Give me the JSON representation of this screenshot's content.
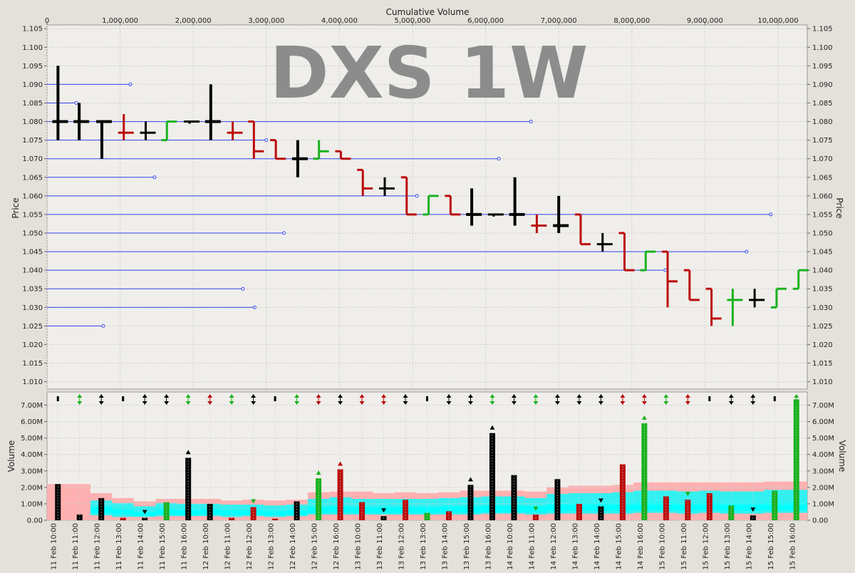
{
  "watermark": "DXS 1W",
  "colors": {
    "up": "#19b21f",
    "down": "#bb0a0a",
    "neutral": "#000000",
    "level_line": "#3344ee",
    "band_outer": "#ffb0b0",
    "band_mid": "#33f0f0",
    "band_inner": "#00ffff",
    "panel_bg": "#f0eeea",
    "grid": "#cfcfcf"
  },
  "chart_data": [
    {
      "type": "ohlc",
      "title": "",
      "xlabel": "Cumulative Volume",
      "ylabel": "Price",
      "xlim": [
        0,
        10400000
      ],
      "ylim": [
        1.008,
        1.106
      ],
      "grid": true,
      "x_ticks": [
        0,
        1000000,
        2000000,
        3000000,
        4000000,
        5000000,
        6000000,
        7000000,
        8000000,
        9000000,
        10000000
      ],
      "x_tick_labels": [
        "0",
        "1,000,000",
        "2,000,000",
        "3,000,000",
        "4,000,000",
        "5,000,000",
        "6,000,000",
        "7,000,000",
        "8,000,000",
        "9,000,000",
        "10,000,000"
      ],
      "y_ticks": [
        1.01,
        1.015,
        1.02,
        1.025,
        1.03,
        1.035,
        1.04,
        1.045,
        1.05,
        1.055,
        1.06,
        1.065,
        1.07,
        1.075,
        1.08,
        1.085,
        1.09,
        1.095,
        1.1,
        1.105
      ],
      "y_tick_labels": [
        "1.010",
        "1.015",
        "1.020",
        "1.025",
        "1.030",
        "1.035",
        "1.040",
        "1.045",
        "1.050",
        "1.055",
        "1.060",
        "1.065",
        "1.070",
        "1.075",
        "1.080",
        "1.085",
        "1.090",
        "1.095",
        "1.100",
        "1.105"
      ],
      "bars": [
        {
          "x": 150000,
          "open": 1.08,
          "high": 1.095,
          "low": 1.075,
          "close": 1.08,
          "color": "neutral"
        },
        {
          "x": 440000,
          "open": 1.08,
          "high": 1.085,
          "low": 1.075,
          "close": 1.08,
          "color": "neutral"
        },
        {
          "x": 750000,
          "open": 1.08,
          "high": 1.08,
          "low": 1.07,
          "close": 1.08,
          "color": "neutral"
        },
        {
          "x": 1050000,
          "open": 1.077,
          "high": 1.082,
          "low": 1.075,
          "close": 1.077,
          "color": "down"
        },
        {
          "x": 1350000,
          "open": 1.077,
          "high": 1.08,
          "low": 1.075,
          "close": 1.077,
          "color": "neutral"
        },
        {
          "x": 1640000,
          "open": 1.075,
          "high": 1.08,
          "low": 1.075,
          "close": 1.08,
          "color": "up"
        },
        {
          "x": 1950000,
          "open": 1.08,
          "high": 1.08,
          "low": 1.08,
          "close": 1.08,
          "color": "neutral"
        },
        {
          "x": 2240000,
          "open": 1.08,
          "high": 1.09,
          "low": 1.075,
          "close": 1.08,
          "color": "neutral"
        },
        {
          "x": 2540000,
          "open": 1.077,
          "high": 1.08,
          "low": 1.075,
          "close": 1.077,
          "color": "down"
        },
        {
          "x": 2830000,
          "open": 1.08,
          "high": 1.08,
          "low": 1.07,
          "close": 1.072,
          "color": "down"
        },
        {
          "x": 3130000,
          "open": 1.075,
          "high": 1.075,
          "low": 1.07,
          "close": 1.07,
          "color": "down"
        },
        {
          "x": 3430000,
          "open": 1.07,
          "high": 1.075,
          "low": 1.065,
          "close": 1.07,
          "color": "neutral"
        },
        {
          "x": 3720000,
          "open": 1.07,
          "high": 1.075,
          "low": 1.07,
          "close": 1.072,
          "color": "up"
        },
        {
          "x": 4020000,
          "open": 1.072,
          "high": 1.072,
          "low": 1.07,
          "close": 1.07,
          "color": "down"
        },
        {
          "x": 4320000,
          "open": 1.067,
          "high": 1.067,
          "low": 1.06,
          "close": 1.062,
          "color": "down"
        },
        {
          "x": 4620000,
          "open": 1.062,
          "high": 1.065,
          "low": 1.06,
          "close": 1.062,
          "color": "neutral"
        },
        {
          "x": 4920000,
          "open": 1.065,
          "high": 1.065,
          "low": 1.055,
          "close": 1.055,
          "color": "down"
        },
        {
          "x": 5220000,
          "open": 1.055,
          "high": 1.06,
          "low": 1.055,
          "close": 1.06,
          "color": "up"
        },
        {
          "x": 5520000,
          "open": 1.06,
          "high": 1.06,
          "low": 1.055,
          "close": 1.055,
          "color": "down"
        },
        {
          "x": 5810000,
          "open": 1.055,
          "high": 1.062,
          "low": 1.052,
          "close": 1.055,
          "color": "neutral"
        },
        {
          "x": 6110000,
          "open": 1.055,
          "high": 1.055,
          "low": 1.055,
          "close": 1.055,
          "color": "neutral"
        },
        {
          "x": 6400000,
          "open": 1.055,
          "high": 1.065,
          "low": 1.052,
          "close": 1.055,
          "color": "neutral"
        },
        {
          "x": 6700000,
          "open": 1.052,
          "high": 1.055,
          "low": 1.05,
          "close": 1.052,
          "color": "down"
        },
        {
          "x": 7000000,
          "open": 1.052,
          "high": 1.06,
          "low": 1.05,
          "close": 1.052,
          "color": "neutral"
        },
        {
          "x": 7300000,
          "open": 1.055,
          "high": 1.055,
          "low": 1.047,
          "close": 1.047,
          "color": "down"
        },
        {
          "x": 7600000,
          "open": 1.047,
          "high": 1.05,
          "low": 1.045,
          "close": 1.047,
          "color": "neutral"
        },
        {
          "x": 7900000,
          "open": 1.05,
          "high": 1.05,
          "low": 1.04,
          "close": 1.04,
          "color": "down"
        },
        {
          "x": 8190000,
          "open": 1.04,
          "high": 1.045,
          "low": 1.04,
          "close": 1.045,
          "color": "up"
        },
        {
          "x": 8490000,
          "open": 1.045,
          "high": 1.045,
          "low": 1.03,
          "close": 1.037,
          "color": "down"
        },
        {
          "x": 8790000,
          "open": 1.04,
          "high": 1.04,
          "low": 1.032,
          "close": 1.032,
          "color": "down"
        },
        {
          "x": 9090000,
          "open": 1.035,
          "high": 1.035,
          "low": 1.025,
          "close": 1.027,
          "color": "down"
        },
        {
          "x": 9380000,
          "open": 1.032,
          "high": 1.035,
          "low": 1.025,
          "close": 1.032,
          "color": "up"
        },
        {
          "x": 9680000,
          "open": 1.032,
          "high": 1.035,
          "low": 1.03,
          "close": 1.032,
          "color": "neutral"
        },
        {
          "x": 9980000,
          "open": 1.03,
          "high": 1.035,
          "low": 1.03,
          "close": 1.035,
          "color": "up"
        },
        {
          "x": 10280000,
          "open": 1.035,
          "high": 1.04,
          "low": 1.035,
          "close": 1.04,
          "color": "up"
        }
      ],
      "level_lines": [
        {
          "price": 1.09,
          "x_end": 1140000
        },
        {
          "price": 1.085,
          "x_end": 400000
        },
        {
          "price": 1.08,
          "x_end": 6620000
        },
        {
          "price": 1.075,
          "x_end": 3000000
        },
        {
          "price": 1.07,
          "x_end": 6180000
        },
        {
          "price": 1.065,
          "x_end": 1470000
        },
        {
          "price": 1.06,
          "x_end": 5060000
        },
        {
          "price": 1.055,
          "x_end": 9900000
        },
        {
          "price": 1.05,
          "x_end": 3240000
        },
        {
          "price": 1.045,
          "x_end": 9570000
        },
        {
          "price": 1.04,
          "x_end": 8460000
        },
        {
          "price": 1.035,
          "x_end": 2680000
        },
        {
          "price": 1.03,
          "x_end": 2840000
        },
        {
          "price": 1.025,
          "x_end": 770000
        }
      ]
    },
    {
      "type": "bar",
      "title": "",
      "xlabel": "",
      "ylabel": "Volume",
      "ylim": [
        0,
        7800000
      ],
      "grid": true,
      "y_ticks": [
        0,
        1000000,
        2000000,
        3000000,
        4000000,
        5000000,
        6000000,
        7000000
      ],
      "y_tick_labels": [
        "0.00",
        "1.00M",
        "2.00M",
        "3.00M",
        "4.00M",
        "5.00M",
        "6.00M",
        "7.00M"
      ],
      "categories": [
        "11 Feb 10:00",
        "11 Feb 11:00",
        "11 Feb 12:00",
        "11 Feb 13:00",
        "11 Feb 14:00",
        "11 Feb 15:00",
        "11 Feb 16:00",
        "12 Feb 10:00",
        "12 Feb 11:00",
        "12 Feb 12:00",
        "12 Feb 13:00",
        "12 Feb 14:00",
        "12 Feb 15:00",
        "12 Feb 16:00",
        "13 Feb 10:00",
        "13 Feb 11:00",
        "13 Feb 12:00",
        "13 Feb 13:00",
        "13 Feb 14:00",
        "13 Feb 15:00",
        "13 Feb 16:00",
        "14 Feb 10:00",
        "14 Feb 11:00",
        "14 Feb 12:00",
        "14 Feb 13:00",
        "14 Feb 14:00",
        "14 Feb 15:00",
        "14 Feb 16:00",
        "15 Feb 10:00",
        "15 Feb 11:00",
        "15 Feb 12:00",
        "15 Feb 13:00",
        "15 Feb 14:00",
        "15 Feb 15:00",
        "15 Feb 16:00"
      ],
      "values": [
        2200000,
        350000,
        1350000,
        150000,
        150000,
        1100000,
        3800000,
        1000000,
        150000,
        800000,
        100000,
        1150000,
        2550000,
        3100000,
        1100000,
        250000,
        1250000,
        450000,
        550000,
        2150000,
        5300000,
        2750000,
        350000,
        2500000,
        1000000,
        850000,
        3400000,
        5900000,
        1450000,
        1250000,
        1650000,
        900000,
        300000,
        1800000,
        7350000
      ],
      "bar_colors": [
        "neutral",
        "neutral",
        "neutral",
        "down",
        "neutral",
        "up",
        "neutral",
        "neutral",
        "down",
        "down",
        "down",
        "neutral",
        "up",
        "down",
        "down",
        "neutral",
        "down",
        "up",
        "down",
        "neutral",
        "neutral",
        "neutral",
        "down",
        "neutral",
        "down",
        "neutral",
        "down",
        "up",
        "down",
        "down",
        "down",
        "up",
        "neutral",
        "up",
        "up"
      ],
      "band_outer": [
        2200000,
        2200000,
        1650000,
        1350000,
        1150000,
        1300000,
        1300000,
        1300000,
        1200000,
        1250000,
        1200000,
        1250000,
        1700000,
        1750000,
        1750000,
        1650000,
        1700000,
        1650000,
        1700000,
        1800000,
        1800000,
        1800000,
        1750000,
        2000000,
        2100000,
        2100000,
        2150000,
        2300000,
        2300000,
        2300000,
        2300000,
        2300000,
        2300000,
        2350000,
        2350000
      ],
      "band_mid": [
        0,
        0,
        1200000,
        1050000,
        850000,
        1050000,
        1000000,
        1000000,
        950000,
        950000,
        900000,
        950000,
        1300000,
        1400000,
        1300000,
        1300000,
        1300000,
        1300000,
        1350000,
        1400000,
        1450000,
        1450000,
        1350000,
        1600000,
        1650000,
        1650000,
        1700000,
        1800000,
        1800000,
        1750000,
        1800000,
        1750000,
        1750000,
        1850000,
        1850000
      ],
      "band_inner": [
        0,
        0,
        800000,
        650000,
        500000,
        650000,
        600000,
        650000,
        600000,
        600000,
        550000,
        600000,
        800000,
        850000,
        800000,
        800000,
        800000,
        800000,
        850000,
        850000,
        900000,
        900000,
        850000,
        1000000,
        1050000,
        1050000,
        1050000,
        1100000,
        1100000,
        1050000,
        1100000,
        1050000,
        1050000,
        1100000,
        1100000
      ],
      "band_floor": [
        0,
        0,
        300000,
        200000,
        200000,
        250000,
        250000,
        250000,
        200000,
        250000,
        200000,
        250000,
        350000,
        350000,
        350000,
        350000,
        350000,
        350000,
        350000,
        350000,
        400000,
        400000,
        350000,
        400000,
        400000,
        400000,
        400000,
        450000,
        450000,
        400000,
        450000,
        400000,
        400000,
        450000,
        450000
      ],
      "top_markers": [
        "tick",
        "up-down",
        "up-down",
        "tick",
        "up-down",
        "up-down",
        "up-down",
        "up-down",
        "up-down",
        "up-down",
        "tick",
        "up-down",
        "up-down",
        "up-down",
        "up-down",
        "up-down",
        "up-down",
        "tick",
        "up-down",
        "up-down",
        "up-down",
        "up-down",
        "up-down",
        "up-down",
        "up-down",
        "up-down",
        "up-down",
        "up-down",
        "up-down",
        "up-down",
        "tick",
        "up-down",
        "up-down",
        "tick",
        "up-down"
      ],
      "top_marker_colors": [
        "neutral",
        "up",
        "neutral",
        "neutral",
        "neutral",
        "neutral",
        "up",
        "down",
        "up",
        "neutral",
        "neutral",
        "up",
        "down",
        "neutral",
        "down",
        "down",
        "neutral",
        "neutral",
        "neutral",
        "neutral",
        "up",
        "neutral",
        "up",
        "neutral",
        "neutral",
        "neutral",
        "down",
        "down",
        "up",
        "down",
        "neutral",
        "neutral",
        "neutral",
        "neutral",
        "up"
      ],
      "bar_markers": [
        {
          "bar": 4,
          "dir": "down",
          "color": "neutral"
        },
        {
          "bar": 6,
          "dir": "up",
          "color": "neutral"
        },
        {
          "bar": 9,
          "dir": "down",
          "color": "up"
        },
        {
          "bar": 12,
          "dir": "up",
          "color": "up"
        },
        {
          "bar": 13,
          "dir": "up",
          "color": "down"
        },
        {
          "bar": 15,
          "dir": "down",
          "color": "neutral"
        },
        {
          "bar": 19,
          "dir": "up",
          "color": "neutral"
        },
        {
          "bar": 20,
          "dir": "up",
          "color": "neutral"
        },
        {
          "bar": 22,
          "dir": "down",
          "color": "up"
        },
        {
          "bar": 25,
          "dir": "down",
          "color": "neutral"
        },
        {
          "bar": 27,
          "dir": "up",
          "color": "up"
        },
        {
          "bar": 29,
          "dir": "down",
          "color": "up"
        },
        {
          "bar": 32,
          "dir": "down",
          "color": "neutral"
        }
      ]
    }
  ]
}
